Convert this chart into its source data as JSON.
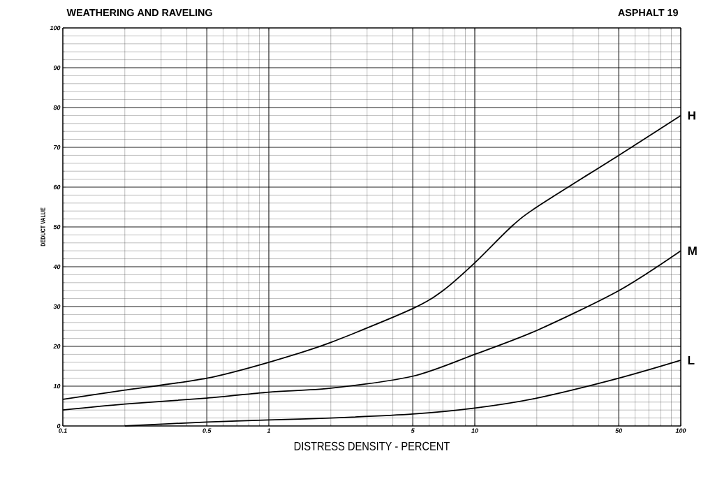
{
  "chart_data": {
    "type": "line",
    "title": "WEATHERING AND RAVELING",
    "subtitle": "ASPHALT 19",
    "xlabel": "DISTRESS DENSITY - PERCENT",
    "ylabel": "DEDUCT VALUE",
    "log": "x",
    "grid": true,
    "legend": "right",
    "marker": "none",
    "line_style": "solid",
    "xlim": [
      0.1,
      100
    ],
    "ylim": [
      0,
      100
    ],
    "xticks": [
      0.1,
      0.5,
      1,
      5,
      10,
      50,
      100
    ],
    "yticks": [
      0,
      10,
      20,
      30,
      40,
      50,
      60,
      70,
      80,
      90,
      100
    ],
    "series": [
      {
        "name": "H",
        "color": "#000000",
        "x": [
          0.1,
          0.2,
          0.5,
          1,
          2,
          5,
          7,
          10,
          15,
          20,
          50,
          100
        ],
        "values": [
          6.7,
          9,
          12,
          16,
          21,
          29.5,
          34,
          41,
          50,
          55,
          68,
          78
        ]
      },
      {
        "name": "M",
        "color": "#000000",
        "x": [
          0.1,
          0.2,
          0.5,
          1,
          2,
          5,
          10,
          20,
          50,
          100
        ],
        "values": [
          4,
          5.5,
          7,
          8.5,
          9.5,
          12.5,
          18,
          24,
          34,
          44
        ]
      },
      {
        "name": "L",
        "color": "#000000",
        "x": [
          0.2,
          0.5,
          1,
          2,
          5,
          10,
          20,
          50,
          100
        ],
        "values": [
          0,
          1,
          1.5,
          2,
          3,
          4.5,
          7,
          12,
          16.5
        ]
      }
    ]
  }
}
